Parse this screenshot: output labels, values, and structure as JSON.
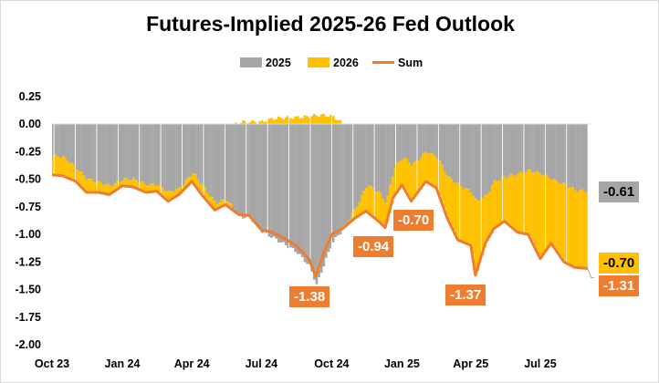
{
  "chart_data": {
    "type": "bar",
    "title": "Futures-Implied 2025-26 Fed Outlook",
    "xlabel": "",
    "ylabel": "",
    "ylim": [
      -2.0,
      0.25
    ],
    "yticks": [
      "0.25",
      "0.00",
      "-0.25",
      "-0.50",
      "-0.75",
      "-1.00",
      "-1.25",
      "-1.50",
      "-1.75",
      "-2.00"
    ],
    "xticks": [
      {
        "label": "Oct 23",
        "date": "2023-10-01"
      },
      {
        "label": "Jan 24",
        "date": "2024-01-01"
      },
      {
        "label": "Apr 24",
        "date": "2024-04-01"
      },
      {
        "label": "Jul 24",
        "date": "2024-07-01"
      },
      {
        "label": "Oct 24",
        "date": "2024-10-01"
      },
      {
        "label": "Jan 25",
        "date": "2025-01-01"
      },
      {
        "label": "Apr 25",
        "date": "2025-04-01"
      },
      {
        "label": "Jul 25",
        "date": "2025-07-01"
      }
    ],
    "legend_placement": "top",
    "grid": false,
    "colors": {
      "2025": "#a6a6a6",
      "2026": "#ffc000",
      "Sum": "#ed7d31"
    },
    "series_names": [
      "2025",
      "2026",
      "Sum"
    ],
    "stacked": true,
    "points": [
      [
        "2023-10-01",
        -0.29,
        -0.17,
        -0.46
      ],
      [
        "2023-10-15",
        -0.3,
        -0.17,
        -0.47
      ],
      [
        "2023-11-01",
        -0.4,
        -0.12,
        -0.52
      ],
      [
        "2023-11-15",
        -0.5,
        -0.12,
        -0.62
      ],
      [
        "2023-12-01",
        -0.53,
        -0.09,
        -0.62
      ],
      [
        "2023-12-15",
        -0.56,
        -0.08,
        -0.64
      ],
      [
        "2024-01-01",
        -0.5,
        -0.06,
        -0.56
      ],
      [
        "2024-01-15",
        -0.5,
        -0.07,
        -0.57
      ],
      [
        "2024-02-01",
        -0.55,
        -0.07,
        -0.62
      ],
      [
        "2024-02-15",
        -0.55,
        -0.06,
        -0.61
      ],
      [
        "2024-03-01",
        -0.62,
        -0.08,
        -0.7
      ],
      [
        "2024-03-15",
        -0.58,
        -0.06,
        -0.64
      ],
      [
        "2024-04-01",
        -0.44,
        -0.08,
        -0.52
      ],
      [
        "2024-04-15",
        -0.57,
        -0.08,
        -0.65
      ],
      [
        "2024-05-01",
        -0.72,
        -0.06,
        -0.78
      ],
      [
        "2024-05-15",
        -0.68,
        -0.05,
        -0.73
      ],
      [
        "2024-06-01",
        -0.84,
        0.02,
        -0.82
      ],
      [
        "2024-06-15",
        -0.85,
        0.02,
        -0.83
      ],
      [
        "2024-07-01",
        -0.98,
        0.02,
        -0.96
      ],
      [
        "2024-07-15",
        -1.03,
        0.05,
        -0.98
      ],
      [
        "2024-08-01",
        -1.1,
        0.06,
        -1.04
      ],
      [
        "2024-08-15",
        -1.16,
        0.06,
        -1.1
      ],
      [
        "2024-09-01",
        -1.29,
        0.07,
        -1.22
      ],
      [
        "2024-09-10",
        -1.46,
        0.08,
        -1.38
      ],
      [
        "2024-09-20",
        -1.26,
        0.08,
        -1.18
      ],
      [
        "2024-10-01",
        -1.07,
        0.07,
        -1.0
      ],
      [
        "2024-10-15",
        -0.95,
        0.0,
        -0.95
      ],
      [
        "2024-11-01",
        -0.75,
        -0.1,
        -0.85
      ],
      [
        "2024-11-15",
        -0.55,
        -0.24,
        -0.79
      ],
      [
        "2024-12-01",
        -0.62,
        -0.26,
        -0.88
      ],
      [
        "2024-12-10",
        -0.72,
        -0.22,
        -0.94
      ],
      [
        "2024-12-20",
        -0.4,
        -0.27,
        -0.67
      ],
      [
        "2025-01-01",
        -0.3,
        -0.25,
        -0.55
      ],
      [
        "2025-01-13",
        -0.37,
        -0.33,
        -0.7
      ],
      [
        "2025-02-01",
        -0.25,
        -0.27,
        -0.52
      ],
      [
        "2025-02-15",
        -0.3,
        -0.28,
        -0.58
      ],
      [
        "2025-03-01",
        -0.48,
        -0.37,
        -0.85
      ],
      [
        "2025-03-15",
        -0.55,
        -0.5,
        -1.05
      ],
      [
        "2025-04-01",
        -0.62,
        -0.48,
        -1.1
      ],
      [
        "2025-04-07",
        -0.7,
        -0.67,
        -1.37
      ],
      [
        "2025-04-20",
        -0.65,
        -0.43,
        -1.08
      ],
      [
        "2025-05-01",
        -0.52,
        -0.43,
        -0.95
      ],
      [
        "2025-05-15",
        -0.48,
        -0.4,
        -0.88
      ],
      [
        "2025-06-01",
        -0.45,
        -0.53,
        -0.98
      ],
      [
        "2025-06-15",
        -0.42,
        -0.58,
        -1.0
      ],
      [
        "2025-07-01",
        -0.45,
        -0.77,
        -1.22
      ],
      [
        "2025-07-15",
        -0.5,
        -0.58,
        -1.08
      ],
      [
        "2025-08-01",
        -0.55,
        -0.7,
        -1.25
      ],
      [
        "2025-08-15",
        -0.6,
        -0.7,
        -1.3
      ],
      [
        "2025-09-01",
        -0.61,
        -0.7,
        -1.31
      ]
    ],
    "annotations": [
      {
        "label": "-1.38",
        "date": "2024-09-10",
        "value": -1.38
      },
      {
        "label": "-0.94",
        "date": "2024-12-10",
        "value": -0.94
      },
      {
        "label": "-0.70",
        "date": "2025-01-13",
        "value": -0.7
      },
      {
        "label": "-1.37",
        "date": "2025-04-07",
        "value": -1.37
      }
    ],
    "end_labels": {
      "2025": "-0.61",
      "2026": "-0.70",
      "Sum": "-1.31"
    }
  }
}
